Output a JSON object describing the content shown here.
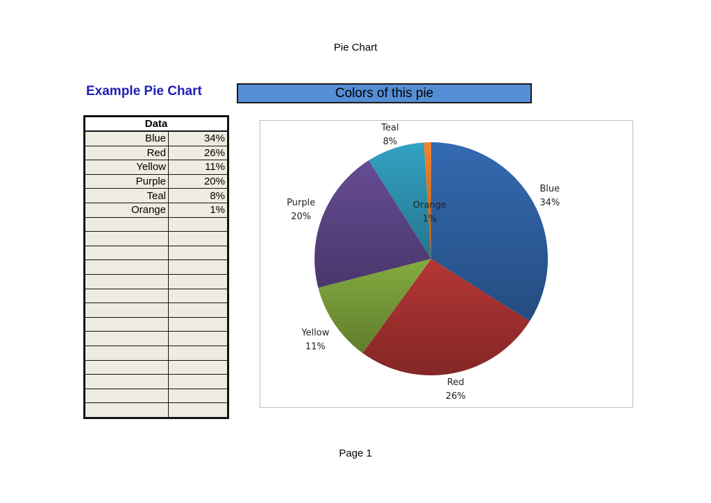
{
  "page": {
    "header": "Pie Chart",
    "footer": "Page 1"
  },
  "sheet": {
    "title": "Example Pie Chart",
    "colors_heading": "Colors of this pie",
    "table_header": "Data",
    "rows": [
      {
        "label": "Blue",
        "value": "34%"
      },
      {
        "label": "Red",
        "value": "26%"
      },
      {
        "label": "Yellow",
        "value": "11%"
      },
      {
        "label": "Purple",
        "value": "20%"
      },
      {
        "label": "Teal",
        "value": "8%"
      },
      {
        "label": "Orange",
        "value": "1%"
      }
    ],
    "empty_row_count": 14
  },
  "chart_data": {
    "type": "pie",
    "title": "",
    "categories": [
      "Blue",
      "Red",
      "Yellow",
      "Purple",
      "Teal",
      "Orange"
    ],
    "values": [
      34,
      26,
      11,
      20,
      8,
      1
    ],
    "value_labels": [
      "34%",
      "26%",
      "11%",
      "20%",
      "8%",
      "1%"
    ],
    "colors": [
      "#2f62a4",
      "#a83231",
      "#7a9f3a",
      "#5e4689",
      "#2f96b5",
      "#e07a2a"
    ],
    "start": "12 o'clock, clockwise",
    "legend": "none (data labels outside slices)"
  }
}
